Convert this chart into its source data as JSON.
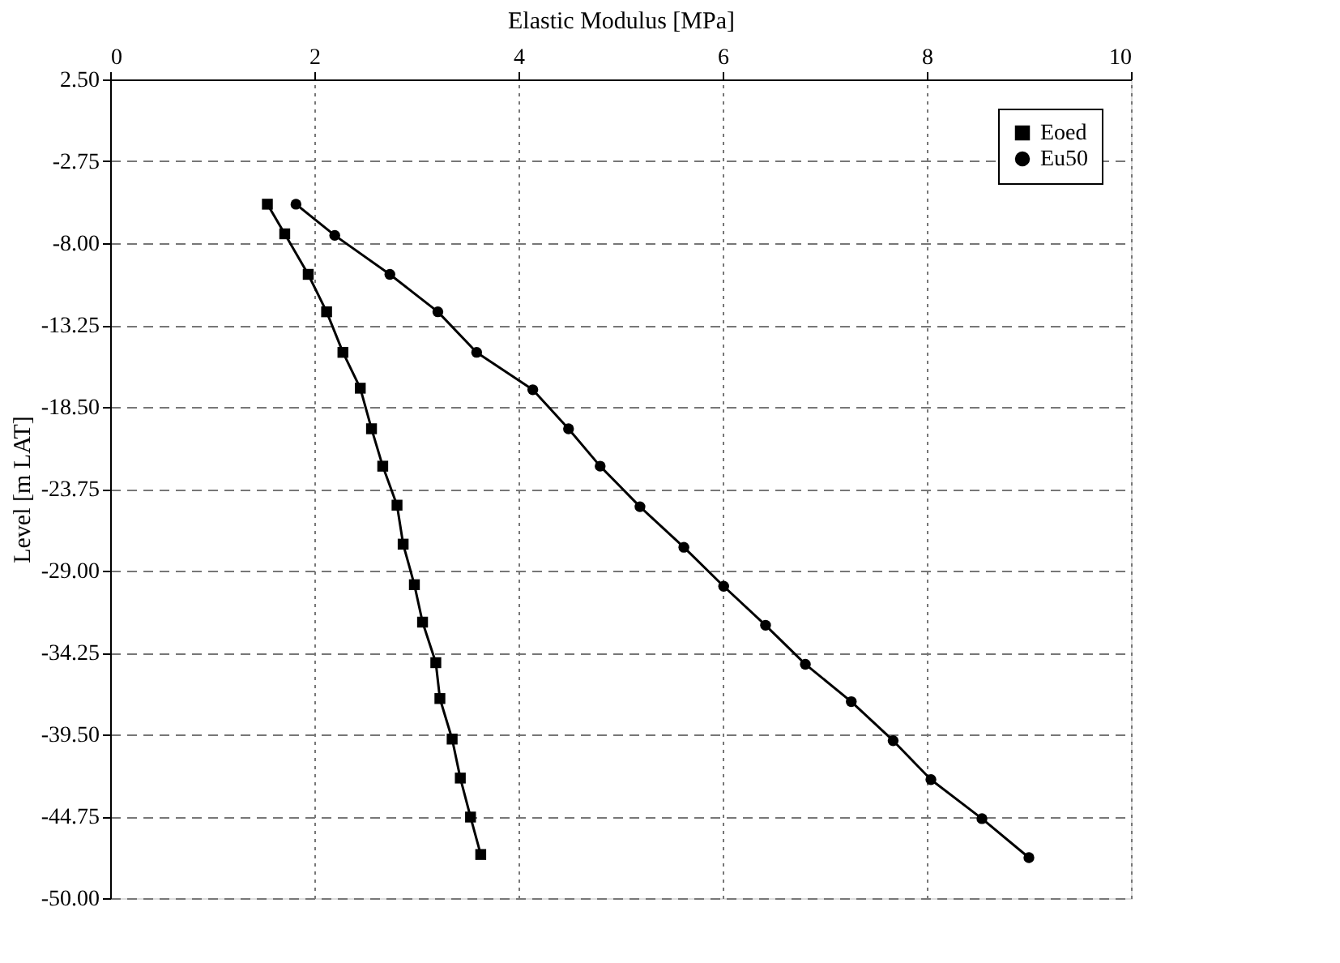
{
  "chart_data": {
    "type": "line",
    "xlabel": "Elastic Modulus [MPa]",
    "ylabel": "Level [m LAT]",
    "xlim": [
      0,
      10
    ],
    "xticks": [
      0,
      2,
      4,
      6,
      8,
      10
    ],
    "ylim": [
      -50,
      2.5
    ],
    "yticks": [
      {
        "value": 2.5,
        "label": "2.50"
      },
      {
        "value": -2.75,
        "label": "-2.75"
      },
      {
        "value": -8,
        "label": "-8.00"
      },
      {
        "value": -13.25,
        "label": "-13.25"
      },
      {
        "value": -18.5,
        "label": "-18.50"
      },
      {
        "value": -23.75,
        "label": "-23.75"
      },
      {
        "value": -29,
        "label": "-29.00"
      },
      {
        "value": -34.25,
        "label": "-34.25"
      },
      {
        "value": -39.5,
        "label": "-39.50"
      },
      {
        "value": -44.75,
        "label": "-44.75"
      },
      {
        "value": -50,
        "label": "-50.00"
      }
    ],
    "grid": true,
    "legend": "top right",
    "line_style": "solid",
    "series": [
      {
        "name": "Eoed",
        "color": "#000000",
        "marker": "square",
        "x": [
          1.54,
          1.71,
          1.94,
          2.12,
          2.28,
          2.45,
          2.56,
          2.67,
          2.81,
          2.87,
          2.98,
          3.06,
          3.19,
          3.23,
          3.35,
          3.43,
          3.53,
          3.63
        ],
        "values": [
          -5.5,
          -7.4,
          -10.0,
          -12.4,
          -15.0,
          -17.3,
          -19.9,
          -22.3,
          -24.8,
          -27.3,
          -29.9,
          -32.3,
          -34.9,
          -37.2,
          -39.8,
          -42.3,
          -44.8,
          -47.2
        ]
      },
      {
        "name": "Eu50",
        "color": "#000000",
        "marker": "circle",
        "x": [
          1.82,
          2.2,
          2.74,
          3.21,
          3.59,
          4.14,
          4.49,
          4.8,
          5.19,
          5.62,
          6.01,
          6.42,
          6.81,
          7.26,
          7.67,
          8.04,
          8.54,
          9.0
        ],
        "values": [
          -5.5,
          -7.5,
          -10.0,
          -12.4,
          -15.0,
          -17.4,
          -19.9,
          -22.3,
          -24.9,
          -27.5,
          -30.0,
          -32.5,
          -35.0,
          -37.4,
          -39.9,
          -42.4,
          -44.9,
          -47.4
        ]
      }
    ]
  }
}
